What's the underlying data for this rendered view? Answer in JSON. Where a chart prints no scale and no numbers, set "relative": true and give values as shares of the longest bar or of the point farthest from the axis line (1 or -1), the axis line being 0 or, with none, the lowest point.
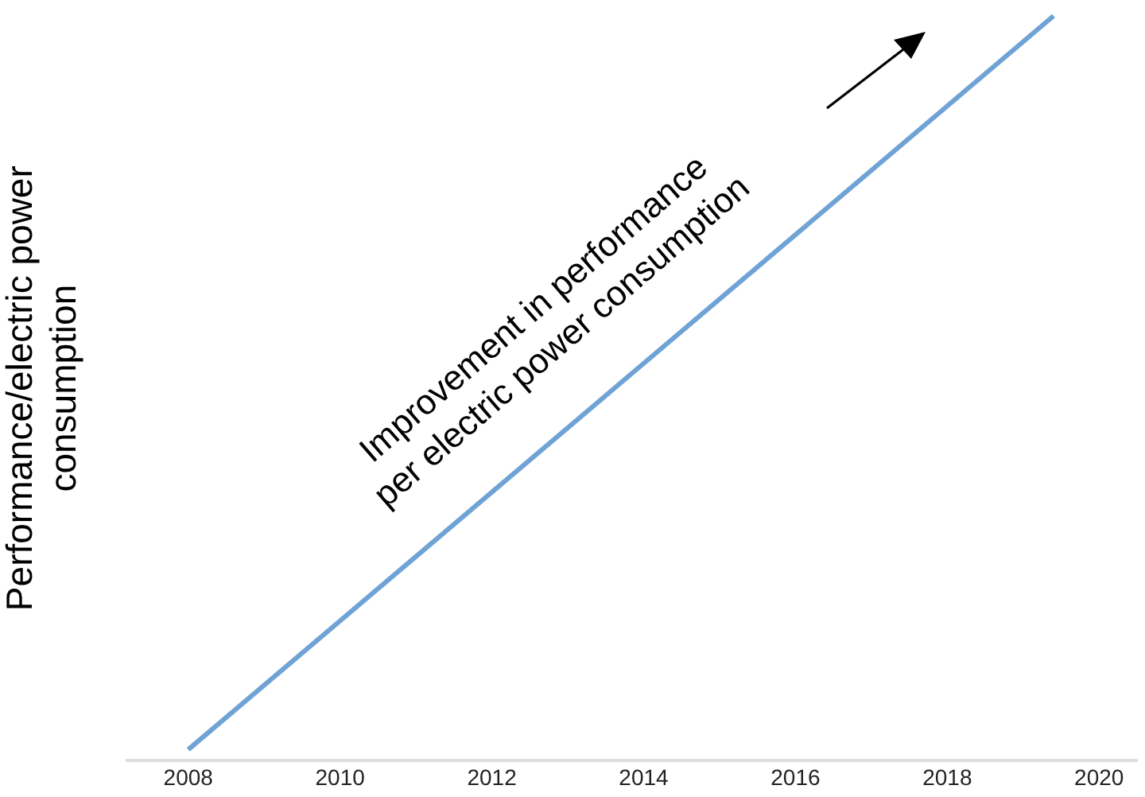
{
  "chart_data": {
    "type": "line",
    "relative": true,
    "ylabel": "Performance/electric power consumption",
    "x": [
      2008,
      2019.4
    ],
    "series": [
      {
        "color": "#6fa3d6",
        "values": [
          0.015,
          1
        ]
      }
    ],
    "xlim": [
      2007.2,
      2020.5
    ],
    "xticks": [
      2008,
      2010,
      2012,
      2014,
      2016,
      2018,
      2020
    ],
    "marker": "none",
    "line_style": "solid",
    "legend": false,
    "annotations": [
      "Improvement in performance per electric power consumption"
    ]
  }
}
